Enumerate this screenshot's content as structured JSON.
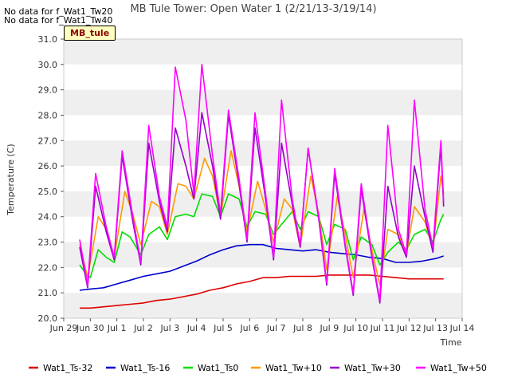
{
  "notes": [
    "No data for f_Wat1_Tw20",
    "No data for f_Wat1_Tw40"
  ],
  "badge": "MB_tule",
  "chart_data": {
    "type": "line",
    "title": "MB Tule Tower: Open Water 1 (2/21/13-3/19/14)",
    "xlabel": "Time",
    "ylabel": "Temperature (C)",
    "ylim": [
      20.0,
      31.0
    ],
    "xlim": [
      29,
      44
    ],
    "yticks": [
      "20.0",
      "21.0",
      "22.0",
      "23.0",
      "24.0",
      "25.0",
      "26.0",
      "27.0",
      "28.0",
      "29.0",
      "30.0",
      "31.0"
    ],
    "xticks": [
      {
        "x": 29,
        "label": "Jun 29"
      },
      {
        "x": 30,
        "label": "Jun 30"
      },
      {
        "x": 31,
        "label": "Jul 1"
      },
      {
        "x": 32,
        "label": "Jul 2"
      },
      {
        "x": 33,
        "label": "Jul 3"
      },
      {
        "x": 34,
        "label": "Jul 4"
      },
      {
        "x": 35,
        "label": "Jul 5"
      },
      {
        "x": 36,
        "label": "Jul 6"
      },
      {
        "x": 37,
        "label": "Jul 7"
      },
      {
        "x": 38,
        "label": "Jul 8"
      },
      {
        "x": 39,
        "label": "Jul 9"
      },
      {
        "x": 40,
        "label": "Jul 10"
      },
      {
        "x": 41,
        "label": "Jul 11"
      },
      {
        "x": 42,
        "label": "Jul 12"
      },
      {
        "x": 43,
        "label": "Jul 13"
      },
      {
        "x": 44,
        "label": "Jul 14"
      }
    ],
    "grid": "horizontal bands",
    "legend_position": "bottom",
    "series": [
      {
        "name": "Wat1_Ts-32",
        "color": "#dd0000",
        "x": [
          29.6,
          30.0,
          30.5,
          31.0,
          31.5,
          32.0,
          32.5,
          33.0,
          33.5,
          34.0,
          34.5,
          35.0,
          35.5,
          36.0,
          36.5,
          37.0,
          37.5,
          38.0,
          38.5,
          39.0,
          39.5,
          40.0,
          40.5,
          41.0,
          41.5,
          42.0,
          42.5,
          43.0,
          43.3
        ],
        "values": [
          20.4,
          20.4,
          20.45,
          20.5,
          20.55,
          20.6,
          20.7,
          20.75,
          20.85,
          20.95,
          21.1,
          21.2,
          21.35,
          21.45,
          21.6,
          21.6,
          21.65,
          21.65,
          21.65,
          21.7,
          21.7,
          21.7,
          21.7,
          21.65,
          21.6,
          21.55,
          21.55,
          21.55,
          21.55
        ]
      },
      {
        "name": "Wat1_Ts-16",
        "color": "#0000cc",
        "x": [
          29.6,
          30.0,
          30.5,
          31.0,
          31.5,
          32.0,
          32.5,
          33.0,
          33.5,
          34.0,
          34.5,
          35.0,
          35.5,
          36.0,
          36.5,
          37.0,
          37.5,
          38.0,
          38.5,
          39.0,
          39.5,
          40.0,
          40.5,
          41.0,
          41.5,
          42.0,
          42.5,
          43.0,
          43.3
        ],
        "values": [
          21.1,
          21.15,
          21.2,
          21.35,
          21.5,
          21.65,
          21.75,
          21.85,
          22.05,
          22.25,
          22.5,
          22.7,
          22.85,
          22.9,
          22.9,
          22.75,
          22.7,
          22.65,
          22.7,
          22.6,
          22.55,
          22.5,
          22.4,
          22.35,
          22.2,
          22.2,
          22.25,
          22.35,
          22.45
        ]
      },
      {
        "name": "Wat1_Ts0",
        "color": "#00dd00",
        "x": [
          29.6,
          29.8,
          30.0,
          30.3,
          30.6,
          30.9,
          31.2,
          31.5,
          31.9,
          32.2,
          32.6,
          32.9,
          33.2,
          33.6,
          33.9,
          34.2,
          34.6,
          34.9,
          35.2,
          35.6,
          35.9,
          36.2,
          36.6,
          36.9,
          37.2,
          37.6,
          37.9,
          38.2,
          38.6,
          38.9,
          39.2,
          39.6,
          39.9,
          40.2,
          40.6,
          40.9,
          41.2,
          41.6,
          41.9,
          42.2,
          42.6,
          42.9,
          43.2,
          43.3
        ],
        "values": [
          22.1,
          21.8,
          21.6,
          22.7,
          22.4,
          22.2,
          23.4,
          23.2,
          22.5,
          23.3,
          23.6,
          23.1,
          24.0,
          24.1,
          24.0,
          24.9,
          24.8,
          24.0,
          24.9,
          24.7,
          23.6,
          24.2,
          24.1,
          23.3,
          23.7,
          24.2,
          23.5,
          24.2,
          24.0,
          22.9,
          23.7,
          23.5,
          22.3,
          23.2,
          22.9,
          22.1,
          22.6,
          23.0,
          22.7,
          23.3,
          23.5,
          23.0,
          23.9,
          24.1
        ]
      },
      {
        "name": "Wat1_Tw+10",
        "color": "#ff9900",
        "x": [
          29.6,
          29.9,
          30.3,
          30.6,
          30.9,
          31.3,
          31.6,
          31.9,
          32.3,
          32.6,
          32.9,
          33.3,
          33.6,
          33.9,
          34.3,
          34.6,
          34.9,
          35.3,
          35.6,
          35.9,
          36.3,
          36.6,
          36.9,
          37.3,
          37.6,
          37.9,
          38.3,
          38.6,
          38.9,
          39.3,
          39.6,
          39.9,
          40.3,
          40.6,
          40.9,
          41.2,
          41.6,
          41.9,
          42.2,
          42.6,
          42.9,
          43.2,
          43.3
        ],
        "values": [
          22.9,
          21.6,
          24.0,
          23.5,
          22.4,
          25.0,
          24.1,
          22.9,
          24.6,
          24.4,
          23.3,
          25.3,
          25.2,
          24.7,
          26.3,
          25.6,
          24.0,
          26.6,
          25.2,
          23.4,
          25.4,
          24.3,
          23.0,
          24.7,
          24.3,
          22.8,
          25.6,
          24.1,
          21.9,
          24.8,
          23.3,
          21.6,
          24.3,
          22.7,
          21.3,
          23.5,
          23.3,
          22.5,
          24.4,
          23.8,
          22.7,
          25.6,
          24.9
        ]
      },
      {
        "name": "Wat1_Tw+30",
        "color": "#9900cc",
        "x": [
          29.6,
          29.9,
          30.2,
          30.6,
          30.9,
          31.2,
          31.6,
          31.9,
          32.2,
          32.6,
          32.9,
          33.2,
          33.6,
          33.9,
          34.2,
          34.6,
          34.9,
          35.2,
          35.6,
          35.9,
          36.2,
          36.6,
          36.9,
          37.2,
          37.6,
          37.9,
          38.2,
          38.6,
          38.9,
          39.2,
          39.6,
          39.9,
          40.2,
          40.6,
          40.9,
          41.2,
          41.6,
          41.9,
          42.2,
          42.6,
          42.9,
          43.2,
          43.3
        ],
        "values": [
          22.8,
          21.2,
          25.2,
          23.4,
          22.3,
          26.4,
          23.8,
          22.1,
          26.9,
          24.6,
          23.4,
          27.5,
          26.0,
          24.7,
          28.1,
          26.0,
          23.9,
          28.0,
          25.3,
          23.0,
          27.5,
          24.7,
          22.3,
          26.9,
          24.5,
          22.8,
          26.7,
          23.9,
          21.3,
          25.7,
          22.8,
          20.9,
          25.1,
          22.4,
          20.6,
          25.2,
          23.2,
          22.4,
          26.0,
          24.0,
          22.6,
          26.8,
          24.4
        ]
      },
      {
        "name": "Wat1_Tw+50",
        "color": "#ff00ff",
        "x": [
          29.6,
          29.9,
          30.2,
          30.6,
          30.9,
          31.2,
          31.6,
          31.9,
          32.2,
          32.6,
          32.9,
          33.2,
          33.6,
          33.9,
          34.2,
          34.6,
          34.9,
          35.2,
          35.6,
          35.9,
          36.2,
          36.6,
          36.9,
          37.2,
          37.6,
          37.9,
          38.2,
          38.6,
          38.9,
          39.2,
          39.6,
          39.9,
          40.2,
          40.6,
          40.9,
          41.2,
          41.6,
          41.9,
          42.2,
          42.6,
          42.9,
          43.2,
          43.3
        ],
        "values": [
          23.1,
          21.3,
          25.7,
          23.6,
          22.4,
          26.6,
          24.0,
          22.2,
          27.6,
          24.8,
          23.6,
          29.9,
          27.8,
          24.9,
          30.0,
          26.4,
          24.1,
          28.2,
          25.5,
          23.1,
          28.1,
          24.9,
          22.4,
          28.6,
          24.7,
          22.9,
          26.7,
          24.0,
          21.4,
          25.9,
          22.9,
          21.0,
          25.3,
          22.5,
          20.7,
          27.6,
          23.5,
          22.5,
          28.6,
          24.3,
          22.8,
          27.0,
          24.6
        ]
      }
    ]
  }
}
